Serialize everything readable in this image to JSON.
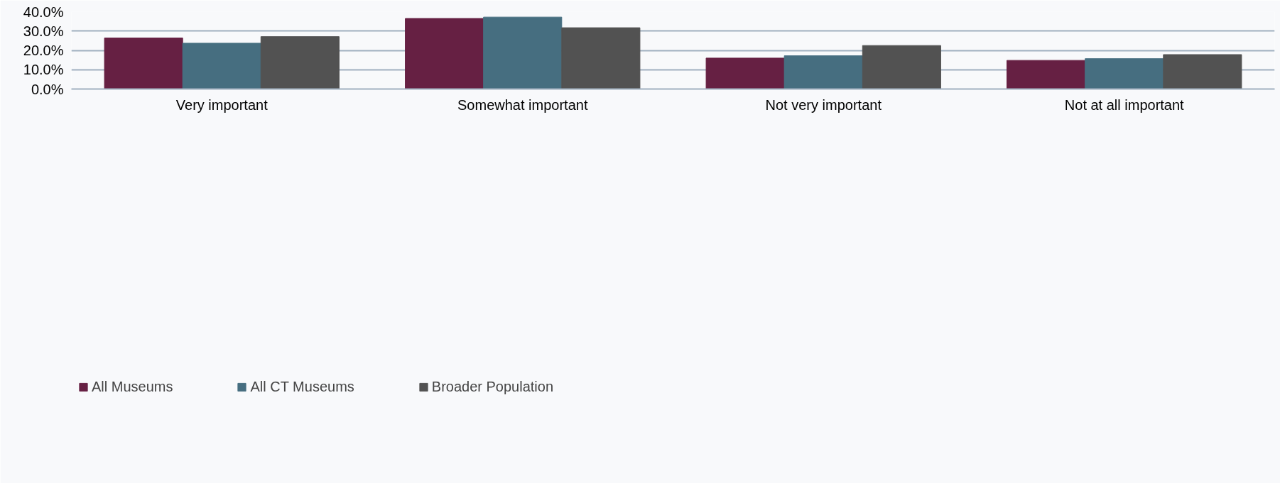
{
  "chart_data": {
    "type": "bar",
    "categories": [
      "Very important",
      "Somewhat important",
      "Not very important",
      "Not at all important"
    ],
    "series": [
      {
        "name": "All Museums",
        "color": "#662043",
        "values": [
          26.4,
          36.5,
          16.0,
          14.8
        ]
      },
      {
        "name": "All CT Museums",
        "color": "#466e80",
        "values": [
          23.7,
          37.2,
          17.2,
          15.7
        ]
      },
      {
        "name": "Broader Population",
        "color": "#525252",
        "values": [
          27.1,
          31.7,
          22.5,
          17.8
        ]
      }
    ],
    "ylim": [
      0,
      40
    ],
    "yticks": [
      {
        "value": 0,
        "label": "0.0%"
      },
      {
        "value": 10,
        "label": "10.0%"
      },
      {
        "value": 20,
        "label": "20.0%"
      },
      {
        "value": 30,
        "label": "30.0%"
      },
      {
        "value": 40,
        "label": "40.0%"
      }
    ],
    "grid": "y",
    "legend": "bottom left"
  }
}
